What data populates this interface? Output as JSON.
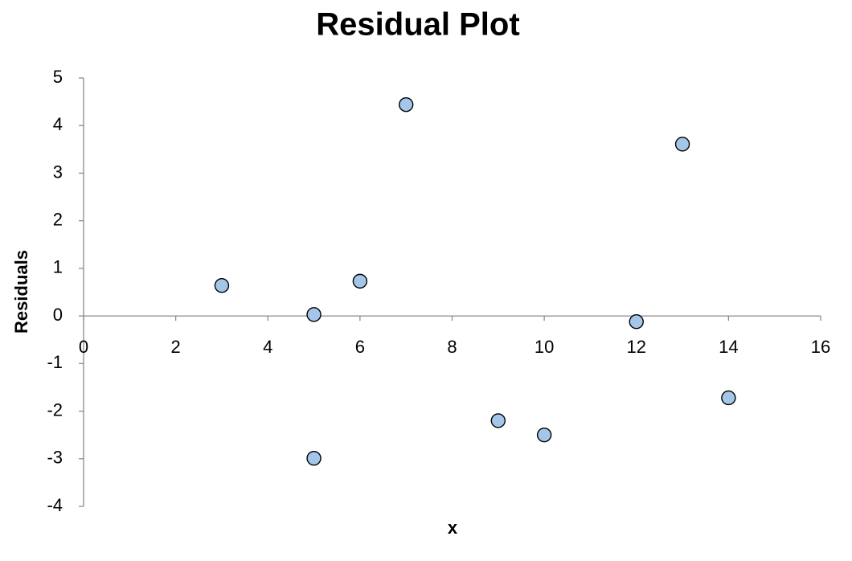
{
  "chart_data": {
    "type": "scatter",
    "title": "Residual Plot",
    "x_label": "x",
    "y_label": "Residuals",
    "x": [
      3,
      5,
      5,
      6,
      7,
      9,
      10,
      12,
      13,
      14
    ],
    "values": [
      0.64,
      0.03,
      -2.99,
      0.73,
      4.44,
      -2.2,
      -2.5,
      -0.12,
      3.61,
      -1.72
    ],
    "color": "#a4c6e9",
    "xlim": [
      0,
      16
    ],
    "xticks": [
      0,
      2,
      4,
      6,
      8,
      10,
      12,
      14,
      16
    ],
    "ylim": [
      -4,
      5
    ],
    "yticks": [
      -4,
      -3,
      -2,
      -1,
      0,
      1,
      2,
      3,
      4,
      5
    ],
    "grid": false
  }
}
